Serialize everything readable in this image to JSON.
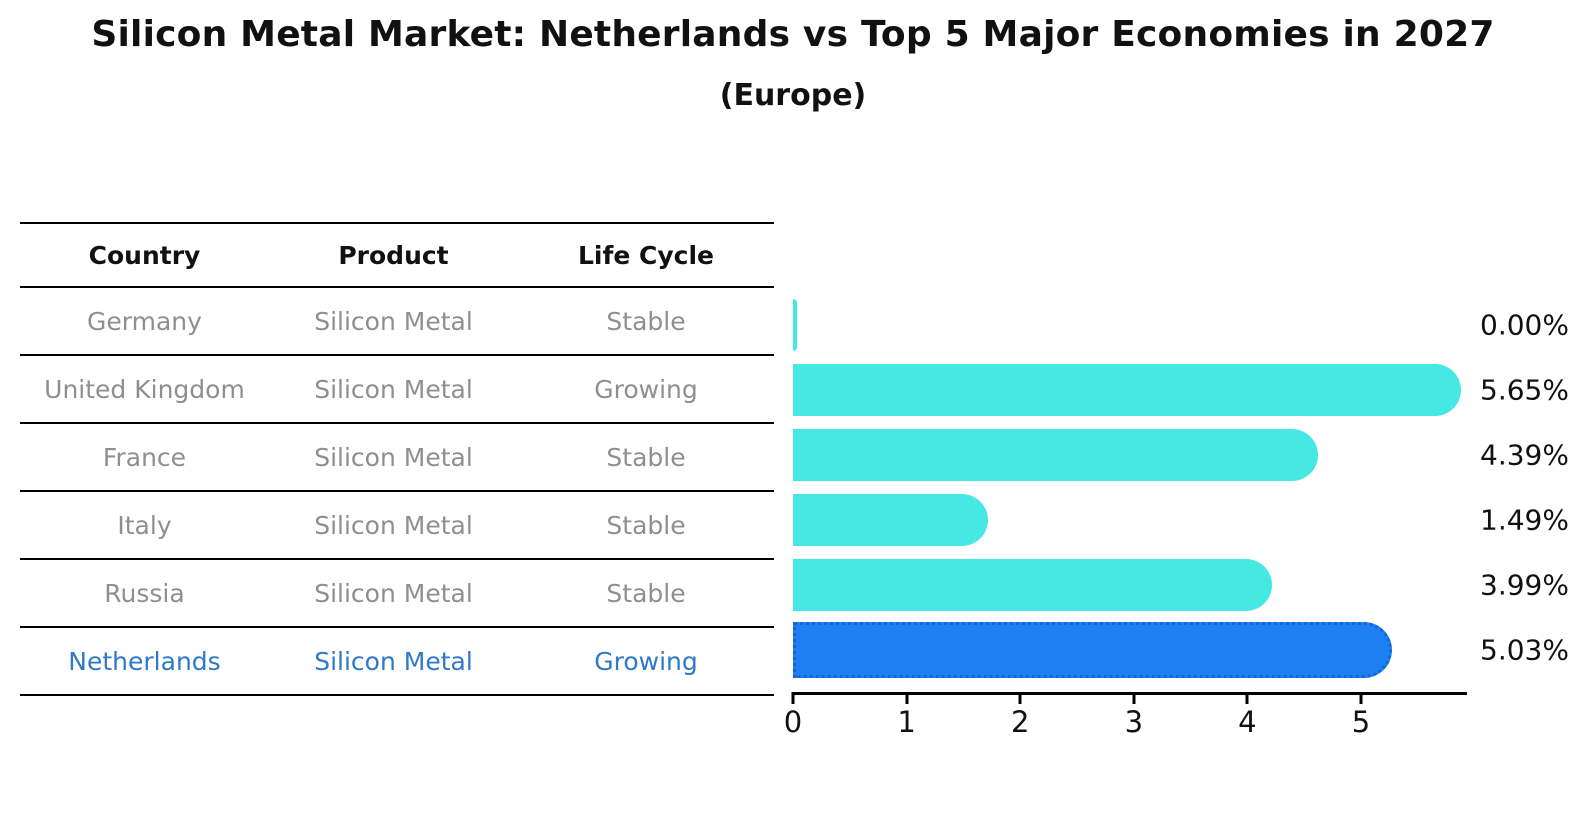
{
  "chart_data": {
    "type": "bar",
    "orientation": "horizontal",
    "title": "Silicon Metal Market: Netherlands vs Top 5 Major Economies in 2027",
    "subtitle": "(Europe)",
    "categories": [
      "Germany",
      "United Kingdom",
      "France",
      "Italy",
      "Russia",
      "Netherlands"
    ],
    "values": [
      0.0,
      5.65,
      4.39,
      1.49,
      3.99,
      5.03
    ],
    "value_labels": [
      "0.00%",
      "5.65%",
      "4.39%",
      "1.49%",
      "3.99%",
      "5.03%"
    ],
    "unit": "percent",
    "x_ticks": [
      "0",
      "1",
      "2",
      "3",
      "4",
      "5"
    ],
    "xlim": [
      0,
      5.93
    ],
    "grid": false,
    "legend": "none",
    "highlight_index": 5,
    "colors": {
      "bar": "#46E8E3",
      "highlight_bar": "#1E80F0",
      "highlight_border": "#1266DC",
      "highlight_text": "#2E79C9",
      "table_text": "#8F8F8F",
      "axis": "#000000"
    }
  },
  "table": {
    "columns": [
      "Country",
      "Product",
      "Life Cycle"
    ],
    "rows": [
      {
        "country": "Germany",
        "product": "Silicon Metal",
        "life_cycle": "Stable"
      },
      {
        "country": "United Kingdom",
        "product": "Silicon Metal",
        "life_cycle": "Growing"
      },
      {
        "country": "France",
        "product": "Silicon Metal",
        "life_cycle": "Stable"
      },
      {
        "country": "Italy",
        "product": "Silicon Metal",
        "life_cycle": "Stable"
      },
      {
        "country": "Russia",
        "product": "Silicon Metal",
        "life_cycle": "Stable"
      },
      {
        "country": "Netherlands",
        "product": "Silicon Metal",
        "life_cycle": "Growing"
      }
    ]
  }
}
